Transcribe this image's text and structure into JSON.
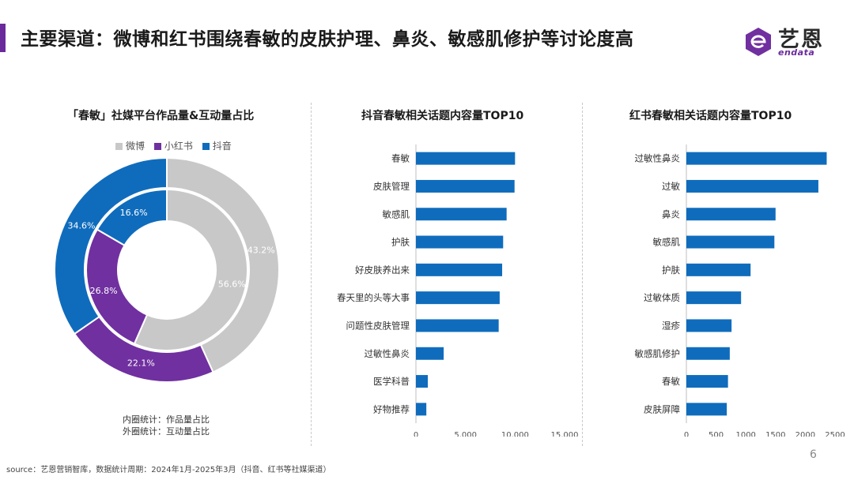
{
  "header": {
    "title": "主要渠道：微博和红书围绕春敏的皮肤护理、鼻炎、敏感肌修护等讨论度高",
    "logo_text": "艺恩",
    "logo_sub": "endata"
  },
  "footer": {
    "source": "source：艺恩营销智库，数据统计周期：2024年1月-2025年3月（抖音、红书等社媒渠道）",
    "page_number": "6"
  },
  "notes": {
    "inner": "内圈统计：作品量占比",
    "outer": "外圈统计：互动量占比"
  },
  "colors": {
    "accent": "#6a2a9c",
    "weibo": "#c8c8c8",
    "xiaohongshu": "#7030a0",
    "douyin": "#0f6cbd",
    "bar": "#0f6cbd"
  },
  "chart_data": [
    {
      "type": "pie",
      "title": "「春敏」社媒平台作品量&互动量占比",
      "legend": [
        "微博",
        "小红书",
        "抖音"
      ],
      "legend_position": "top",
      "outer_ring": {
        "label": "外圈统计：互动量占比",
        "values": [
          43.2,
          22.1,
          34.6
        ],
        "value_labels": [
          "43.2%",
          "22.1%",
          "34.6%"
        ]
      },
      "inner_ring": {
        "label": "内圈统计：作品量占比",
        "values": [
          56.6,
          26.8,
          16.6
        ],
        "value_labels": [
          "56.6%",
          "26.8%",
          "16.6%"
        ]
      }
    },
    {
      "type": "bar",
      "orientation": "horizontal",
      "title": "抖音春敏相关话题内容量TOP10",
      "categories": [
        "春敏",
        "皮肤管理",
        "敏感肌",
        "护肤",
        "好皮肤养出来",
        "春天里的头等大事",
        "问题性皮肤管理",
        "过敏性鼻炎",
        "医学科普",
        "好物推荐"
      ],
      "values": [
        10000,
        9950,
        9150,
        8800,
        8700,
        8450,
        8350,
        2800,
        1200,
        1050
      ],
      "xlim": [
        0,
        15000
      ],
      "xticks": [
        "0",
        "5,000",
        "10,000",
        "15,000"
      ],
      "grid": false
    },
    {
      "type": "bar",
      "orientation": "horizontal",
      "title": "红书春敏相关话题内容量TOP10",
      "categories": [
        "过敏性鼻炎",
        "过敏",
        "鼻炎",
        "敏感肌",
        "护肤",
        "过敏体质",
        "湿疹",
        "敏感肌修护",
        "春敏",
        "皮肤屏障"
      ],
      "values": [
        2360,
        2220,
        1500,
        1480,
        1080,
        920,
        760,
        730,
        700,
        680
      ],
      "xlim": [
        0,
        2500
      ],
      "xticks": [
        "0",
        "500",
        "1000",
        "1500",
        "2000",
        "2500"
      ],
      "grid": false
    }
  ]
}
